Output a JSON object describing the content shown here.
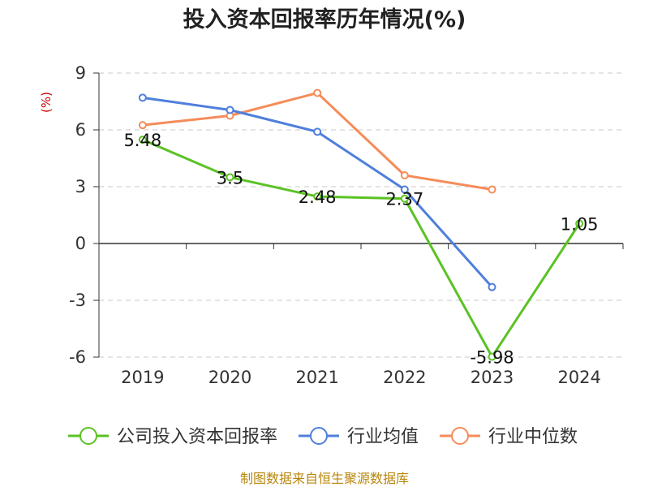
{
  "chart_data": {
    "type": "line",
    "title": "投入资本回报率历年情况(%)",
    "ylabel": "(%)",
    "xlabel": "",
    "categories": [
      "2019",
      "2020",
      "2021",
      "2022",
      "2023",
      "2024"
    ],
    "ylim": [
      -6,
      9
    ],
    "yticks": [
      "9",
      "6",
      "3",
      "0",
      "-3",
      "-6"
    ],
    "ytick_values": [
      9,
      6,
      3,
      0,
      -3,
      -6
    ],
    "grid": true,
    "legend_position": "bottom",
    "series": [
      {
        "name": "公司投入资本回报率",
        "color": "#5bc224",
        "values": [
          5.48,
          3.5,
          2.48,
          2.37,
          -5.98,
          1.05
        ],
        "labels": [
          "5.48",
          "3.5",
          "2.48",
          "2.37",
          "-5.98",
          "1.05"
        ]
      },
      {
        "name": "行业均值",
        "color": "#4f7fdc",
        "values": [
          7.7,
          7.05,
          5.9,
          2.85,
          -2.3,
          null
        ]
      },
      {
        "name": "行业中位数",
        "color": "#f58c5a",
        "values": [
          6.25,
          6.75,
          7.95,
          3.6,
          2.85,
          null
        ]
      }
    ]
  },
  "source": "制图数据来自恒生聚源数据库",
  "colors": {
    "unit_label": "#cc0000",
    "source_text": "#b8860b",
    "axis": "#333333",
    "grid": "#c8c8c8"
  }
}
